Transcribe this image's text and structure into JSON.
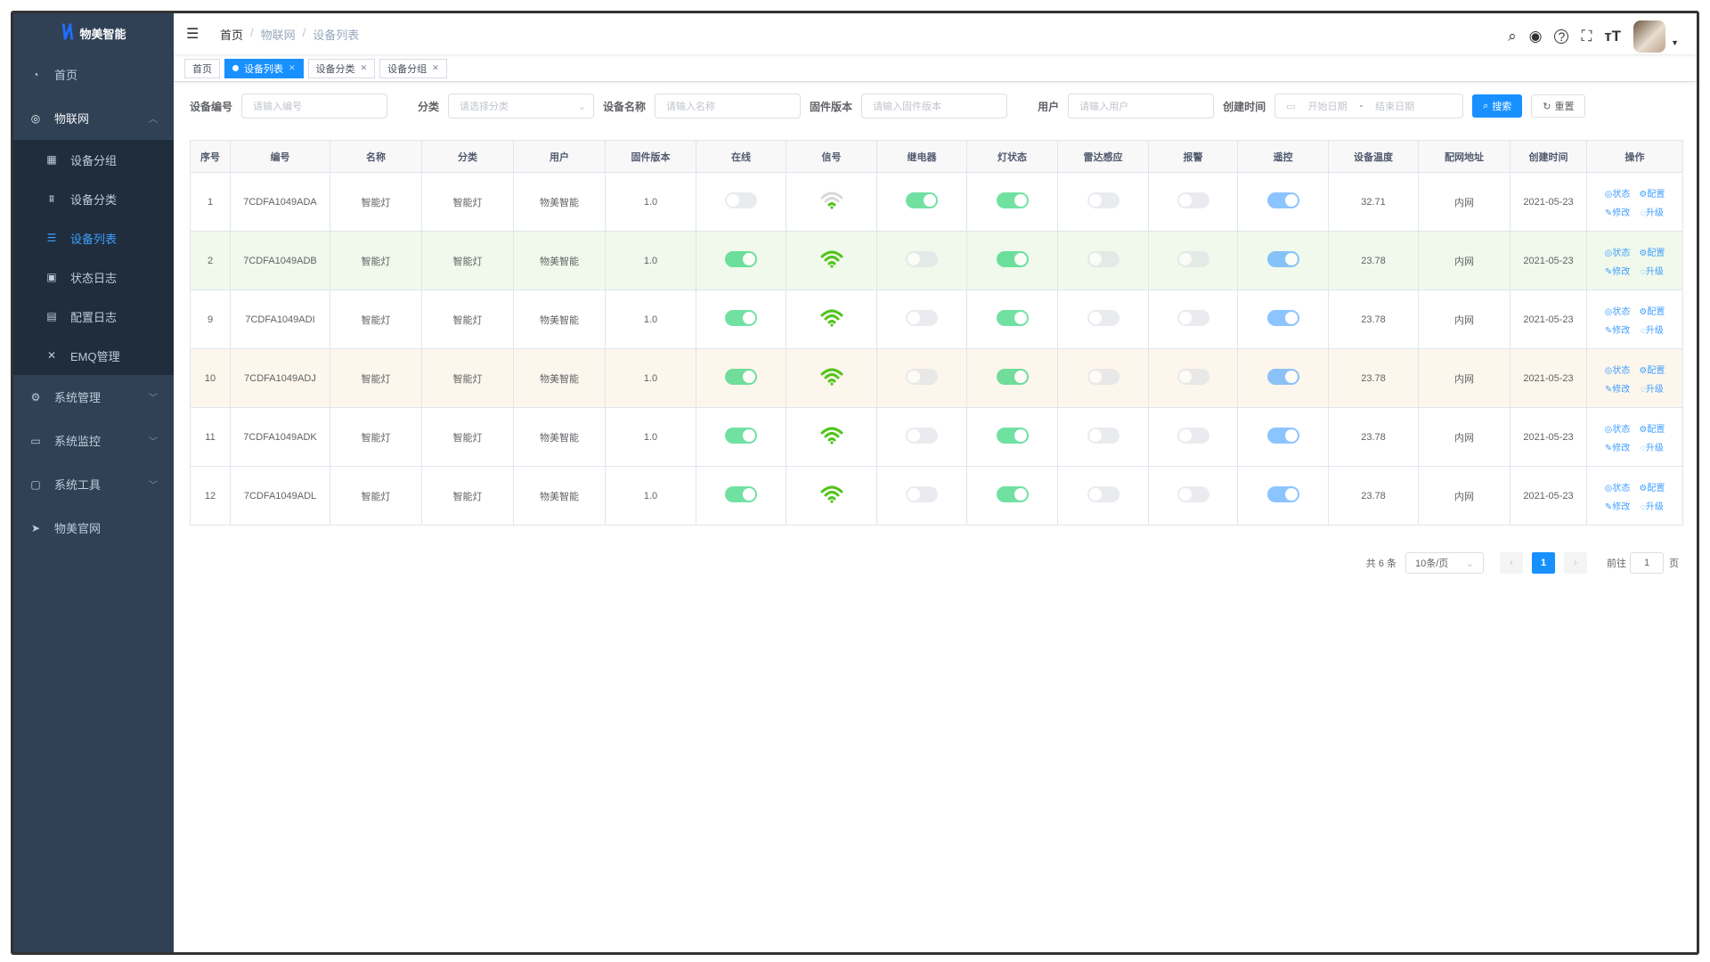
{
  "app": {
    "logo_text": "物美智能"
  },
  "sidebar": {
    "items": [
      {
        "label": "首页",
        "icon": "dashboard-icon"
      },
      {
        "label": "物联网",
        "icon": "iot-icon",
        "expanded": true,
        "children": [
          {
            "label": "设备分组",
            "icon": "grid-icon"
          },
          {
            "label": "设备分类",
            "icon": "tree-icon"
          },
          {
            "label": "设备列表",
            "icon": "list-icon",
            "active": true
          },
          {
            "label": "状态日志",
            "icon": "chart-icon"
          },
          {
            "label": "配置日志",
            "icon": "log-icon"
          },
          {
            "label": "EMQ管理",
            "icon": "cross-icon"
          }
        ]
      },
      {
        "label": "系统管理",
        "icon": "gear-icon"
      },
      {
        "label": "系统监控",
        "icon": "monitor-icon"
      },
      {
        "label": "系统工具",
        "icon": "toolbox-icon"
      },
      {
        "label": "物美官网",
        "icon": "send-icon"
      }
    ]
  },
  "header": {
    "breadcrumb": [
      "首页",
      "物联网",
      "设备列表"
    ],
    "icons": [
      "search-icon",
      "github-icon",
      "help-icon",
      "fullscreen-icon",
      "font-size-icon"
    ]
  },
  "tags": [
    {
      "label": "首页",
      "active": false,
      "closable": false
    },
    {
      "label": "设备列表",
      "active": true,
      "closable": true
    },
    {
      "label": "设备分类",
      "active": false,
      "closable": true
    },
    {
      "label": "设备分组",
      "active": false,
      "closable": true
    }
  ],
  "search": {
    "device_no": {
      "label": "设备编号",
      "placeholder": "请输入编号"
    },
    "category": {
      "label": "分类",
      "placeholder": "请选择分类"
    },
    "name": {
      "label": "设备名称",
      "placeholder": "请输入名称"
    },
    "firmware": {
      "label": "固件版本",
      "placeholder": "请输入固件版本"
    },
    "user": {
      "label": "用户",
      "placeholder": "请输入用户"
    },
    "created": {
      "label": "创建时间",
      "start": "开始日期",
      "sep": "-",
      "end": "结束日期"
    },
    "search_label": "搜索",
    "reset_label": "重置"
  },
  "table": {
    "columns": [
      "序号",
      "编号",
      "名称",
      "分类",
      "用户",
      "固件版本",
      "在线",
      "信号",
      "继电器",
      "灯状态",
      "雷达感应",
      "报警",
      "遥控",
      "设备温度",
      "配网地址",
      "创建时间",
      "操作"
    ],
    "actions": [
      "状态",
      "配置",
      "修改",
      "升级"
    ],
    "rows": [
      {
        "seq": "1",
        "no": "7CDFA1049ADA",
        "name": "智能灯",
        "category": "智能灯",
        "user": "物美智能",
        "fw": "1.0",
        "online": false,
        "signal": "weak",
        "relay": true,
        "light": true,
        "radar": false,
        "alarm": false,
        "remote": true,
        "temp": "32.71",
        "net": "内网",
        "created": "2021-05-23",
        "highlight": ""
      },
      {
        "seq": "2",
        "no": "7CDFA1049ADB",
        "name": "智能灯",
        "category": "智能灯",
        "user": "物美智能",
        "fw": "1.0",
        "online": true,
        "signal": "strong",
        "relay": false,
        "light": true,
        "radar": false,
        "alarm": false,
        "remote": true,
        "temp": "23.78",
        "net": "内网",
        "created": "2021-05-23",
        "highlight": "success"
      },
      {
        "seq": "9",
        "no": "7CDFA1049ADI",
        "name": "智能灯",
        "category": "智能灯",
        "user": "物美智能",
        "fw": "1.0",
        "online": true,
        "signal": "strong",
        "relay": false,
        "light": true,
        "radar": false,
        "alarm": false,
        "remote": true,
        "temp": "23.78",
        "net": "内网",
        "created": "2021-05-23",
        "highlight": ""
      },
      {
        "seq": "10",
        "no": "7CDFA1049ADJ",
        "name": "智能灯",
        "category": "智能灯",
        "user": "物美智能",
        "fw": "1.0",
        "online": true,
        "signal": "strong",
        "relay": false,
        "light": true,
        "radar": false,
        "alarm": false,
        "remote": true,
        "temp": "23.78",
        "net": "内网",
        "created": "2021-05-23",
        "highlight": "warning"
      },
      {
        "seq": "11",
        "no": "7CDFA1049ADK",
        "name": "智能灯",
        "category": "智能灯",
        "user": "物美智能",
        "fw": "1.0",
        "online": true,
        "signal": "strong",
        "relay": false,
        "light": true,
        "radar": false,
        "alarm": false,
        "remote": true,
        "temp": "23.78",
        "net": "内网",
        "created": "2021-05-23",
        "highlight": ""
      },
      {
        "seq": "12",
        "no": "7CDFA1049ADL",
        "name": "智能灯",
        "category": "智能灯",
        "user": "物美智能",
        "fw": "1.0",
        "online": true,
        "signal": "strong",
        "relay": false,
        "light": true,
        "radar": false,
        "alarm": false,
        "remote": true,
        "temp": "23.78",
        "net": "内网",
        "created": "2021-05-23",
        "highlight": ""
      }
    ]
  },
  "pagination": {
    "total": "共 6 条",
    "page_size": "10条/页",
    "current": "1",
    "goto_label": "前往",
    "goto_value": "1",
    "page_suffix": "页"
  },
  "colors": {
    "primary": "#1890ff",
    "sidebar": "#304156",
    "submenu": "#1f2d3d",
    "switch_green": "#13ce66",
    "switch_blue": "#409eff",
    "switch_off": "#dcdfe6",
    "signal_green": "#52c41a"
  }
}
